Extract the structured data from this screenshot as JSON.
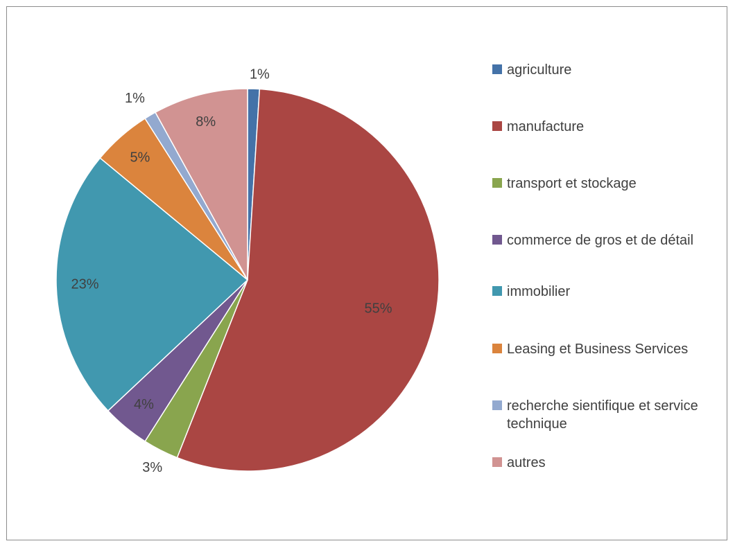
{
  "chart_data": {
    "type": "pie",
    "title": "",
    "legend_position": "right",
    "slices": [
      {
        "name": "agriculture",
        "value": 1,
        "label": "1%",
        "color": "#4472a8"
      },
      {
        "name": "manufacture",
        "value": 55,
        "label": "55%",
        "color": "#aa4643"
      },
      {
        "name": "transport et stockage",
        "value": 3,
        "label": "3%",
        "color": "#89a54e"
      },
      {
        "name": "commerce de gros et de détail",
        "value": 4,
        "label": "4%",
        "color": "#71588f"
      },
      {
        "name": "immobilier",
        "value": 23,
        "label": "23%",
        "color": "#4198af"
      },
      {
        "name": "Leasing et Business Services",
        "value": 5,
        "label": "5%",
        "color": "#db843d"
      },
      {
        "name": "recherche sientifique et service technique",
        "value": 1,
        "label": "1%",
        "color": "#93a9cf"
      },
      {
        "name": "autres",
        "value": 8,
        "label": "8%",
        "color": "#d19392"
      }
    ]
  }
}
